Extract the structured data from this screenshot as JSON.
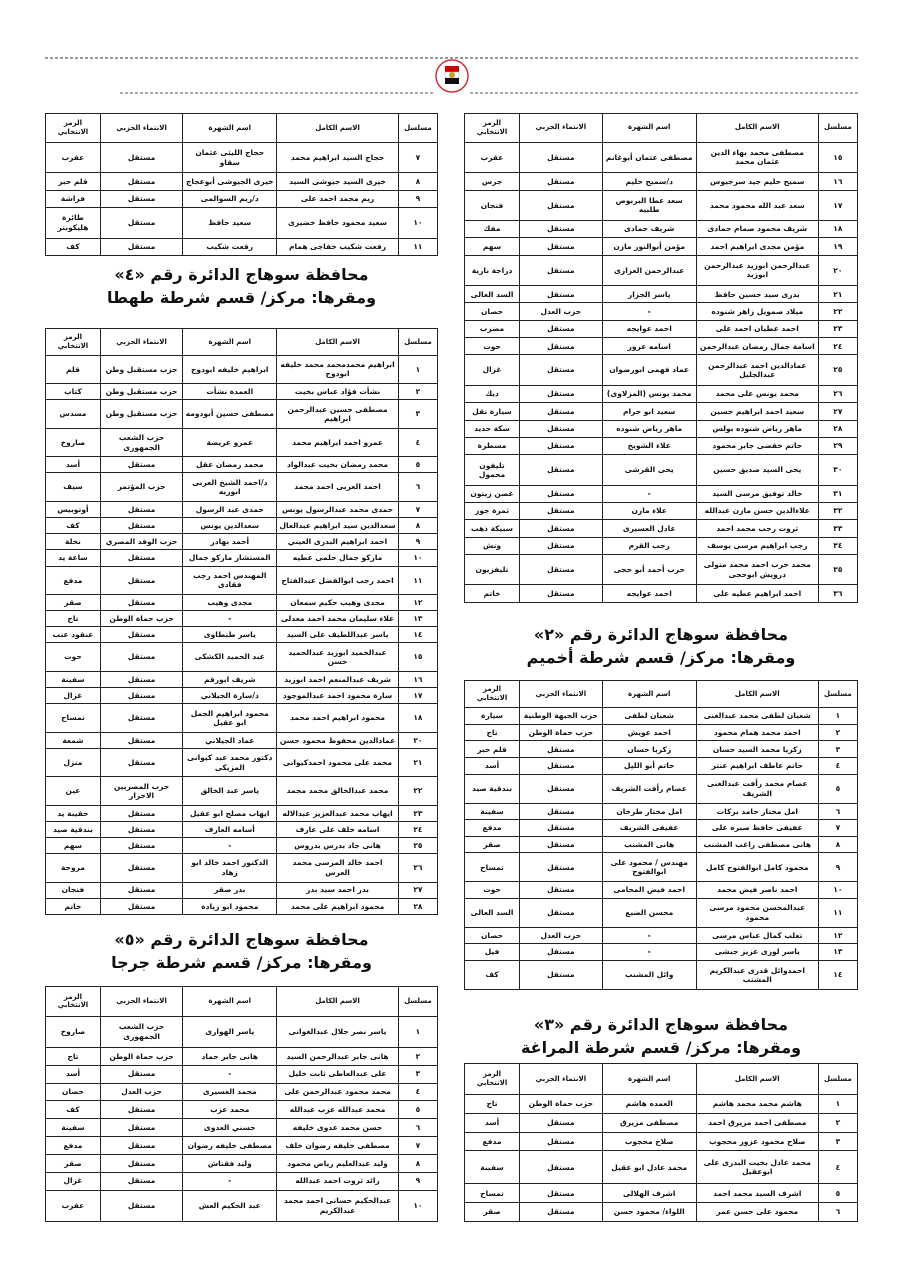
{
  "columns": [
    "مسلسل",
    "الاسم الكامل",
    "اسم الشهرة",
    "الانتماء الحزبي",
    "الرمز الانتخابي"
  ],
  "right_column": [
    {
      "rows": [
        [
          "١٥",
          "مصطفى محمد بهاء الدين عثمان محمد",
          "مصطفى عثمان أبوغانم",
          "مستقل",
          "عقرب"
        ],
        [
          "١٦",
          "سميح حليم جيد سرجيوس",
          "د/سميح حليم",
          "مستقل",
          "جرس"
        ],
        [
          "١٧",
          "سعد عبد الله محمود محمد",
          "سعد عطا البربوص طلبيه",
          "مستقل",
          "فنجان"
        ],
        [
          "١٨",
          "شريف محمود صمام حمادى",
          "شريف حمادى",
          "مستقل",
          "مفك"
        ],
        [
          "١٩",
          "مؤمن مجدى ابراهيم احمد",
          "مؤمن أبوالنور مازن",
          "مستقل",
          "سهم"
        ],
        [
          "٢٠",
          "عبدالرحمن ابوزيد عبدالرحمن ابوزيد",
          "عبدالرحمن العزازى",
          "مستقل",
          "دراجة نارية"
        ],
        [
          "٢١",
          "بدرى سيد حسين حافظ",
          "ياسر الجزار",
          "مستقل",
          "السد العالى"
        ],
        [
          "٢٢",
          "ميلاد صمويل زاهر شنوده",
          "-",
          "حزب العدل",
          "حصان"
        ],
        [
          "٢٣",
          "احمد عطيان احمد على",
          "احمد عوايجه",
          "مستقل",
          "مضرب"
        ],
        [
          "٢٤",
          "اسامة جمال رمضان عبدالرحمن",
          "اسامه عرور",
          "مستقل",
          "حوت"
        ],
        [
          "٢٥",
          "عمادالدين احمد عبدالرحمن عبدالجليل",
          "عماد فهمى ابورضوان",
          "مستقل",
          "غزال"
        ],
        [
          "٢٦",
          "محمد يونس على محمد",
          "محمد يونس (المزلاوى)",
          "مستقل",
          "ديك"
        ],
        [
          "٢٧",
          "سعيد احمد ابراهيم حسين",
          "سعيد ابو حرام",
          "مستقل",
          "سيارة نقل"
        ],
        [
          "٢٨",
          "ماهر رياض شنوده بولس",
          "ماهر رياض شنوده",
          "مستقل",
          "سكة حديد"
        ],
        [
          "٢٩",
          "حاتم خفضى جابر محمود",
          "علاء الشويخ",
          "مستقل",
          "مسطرة"
        ],
        [
          "٣٠",
          "يحى السيد صديق حسين",
          "يحى القرشى",
          "مستقل",
          "تليفون محمول"
        ],
        [
          "٣١",
          "خالد توفيق مرسى السيد",
          "-",
          "مستقل",
          "غصن زيتون"
        ],
        [
          "٣٢",
          "علاءالدين حسن مازن عبدالله",
          "علاء مازن",
          "مستقل",
          "ثمرة جوز"
        ],
        [
          "٣٣",
          "ثروت رجب محمد احمد",
          "عادل العسيرى",
          "مستقل",
          "سبيكة ذهب"
        ],
        [
          "٣٤",
          "رجب ابراهيم مرسى يوسف",
          "رجب القرم",
          "مستقل",
          "ونش"
        ],
        [
          "٣٥",
          "محمد حرب احمد محمد متولى درويش ابوحجى",
          "حرب أحمد أبو حجى",
          "مستقل",
          "تليفزيون"
        ],
        [
          "٣٦",
          "احمد ابراهيم عطيه على",
          "احمد عوايجه",
          "مستقل",
          "خاتم"
        ]
      ]
    },
    {
      "heading": [
        "محافظة سوهاج الدائرة رقم «٢»",
        "ومقرها: مركز/ قسم شرطة أخميم"
      ],
      "rows": [
        [
          "١",
          "شعبان لطفى محمد عبدالغنى",
          "شعبان لطفى",
          "حزب الجبهة الوطنية",
          "سيارة"
        ],
        [
          "٢",
          "احمد محمد همام محمود",
          "احمد عويش",
          "حزب حماة الوطن",
          "تاج"
        ],
        [
          "٣",
          "زكريا محمد السيد حسان",
          "زكريا حسان",
          "مستقل",
          "قلم حبر"
        ],
        [
          "٤",
          "حاتم عاطف ابراهيم عنتر",
          "حاتم أبو الليل",
          "مستقل",
          "أسد"
        ],
        [
          "٥",
          "عصام محمد رأفت عبدالغنى الشريف",
          "عصام رأفت الشريف",
          "مستقل",
          "بندقية صيد"
        ],
        [
          "٦",
          "امل مختار حامد بركات",
          "امل مختار طرخان",
          "مستقل",
          "سفينة"
        ],
        [
          "٧",
          "عفيفى حافظ صبره على",
          "عفيفى الشريف",
          "مستقل",
          "مدفع"
        ],
        [
          "٨",
          "هانى مصطفى راغب المشنب",
          "هانى المشنب",
          "مستقل",
          "صقر"
        ],
        [
          "٩",
          "محمود كامل ابوالفتوح كامل",
          "مهندس / محمود على ابوالفتوح",
          "مستقل",
          "تمساح"
        ],
        [
          "١٠",
          "احمد ناصر فيض محمد",
          "احمد فيض المحامى",
          "مستقل",
          "حوت"
        ],
        [
          "١١",
          "عبدالمحسن محمود مرسى محمود",
          "محسن الضبع",
          "مستقل",
          "السد العالى"
        ],
        [
          "١٢",
          "تعلب كمال عباس مرسى",
          "-",
          "حزب العدل",
          "حصان"
        ],
        [
          "١٣",
          "ياسر لوزى عزيز جبشى",
          "-",
          "مستقل",
          "فيل"
        ],
        [
          "١٤",
          "احمدوائل قدرى عبدالكريم المشنب",
          "وائل المشنب",
          "مستقل",
          "كف"
        ]
      ]
    },
    {
      "heading": [
        "محافظة سوهاج الدائرة رقم «٣»",
        "ومقرها: مركز/ قسم شرطة المراغة"
      ],
      "rows": [
        [
          "١",
          "هاشم محمد محمد هاشم",
          "العمده هاشم",
          "حزب حماة الوطن",
          "تاج"
        ],
        [
          "٢",
          "مصطفى احمد مزيرق احمد",
          "مصطفى مزيرق",
          "مستقل",
          "أسد"
        ],
        [
          "٣",
          "صلاح محمود عزوز محجوب",
          "صلاح محجوب",
          "مستقل",
          "مدفع"
        ],
        [
          "٤",
          "محمد عادل بخيت البدرى على ابوعقيل",
          "محمد عادل ابو عقيل",
          "مستقل",
          "سفينة"
        ],
        [
          "٥",
          "اشرف السيد محمد احمد",
          "اشرف الهلالى",
          "مستقل",
          "تمساح"
        ],
        [
          "٦",
          "محمود على حسن عمر",
          "اللواء/ محمود حسن",
          "مستقل",
          "صقر"
        ]
      ]
    }
  ],
  "left_column": [
    {
      "rows": [
        [
          "٧",
          "حجاج السيد ابراهيم محمد",
          "حجاج الليثى عثمان سقاو",
          "مستقل",
          "عقرب"
        ],
        [
          "٨",
          "خيرى السيد جيوشى السيد",
          "خيرى الجيوشى أبوعجاج",
          "مستقل",
          "قلم حبر"
        ],
        [
          "٩",
          "ريم محمد احمد على",
          "د/ريم السوالمى",
          "مستقل",
          "فراشة"
        ],
        [
          "١٠",
          "سعيد محمود حافظ خضيرى",
          "سعيد حافظ",
          "مستقل",
          "طائرة هليكوبتر"
        ],
        [
          "١١",
          "رفعت شكيب خفاجى همام",
          "رفعت شكيب",
          "مستقل",
          "كف"
        ]
      ]
    },
    {
      "heading": [
        "محافظة سوهاج الدائرة رقم «٤»",
        "ومقرها: مركز/ قسم شرطة طهطا"
      ],
      "rows": [
        [
          "١",
          "ابراهيم محمدمحمد محمد خليفه ابودوح",
          "ابراهيم خليفه ابودوح",
          "حزب مستقبل وطن",
          "قلم"
        ],
        [
          "٢",
          "نشأت فؤاد عباس بخيت",
          "العمدة نشأت",
          "حزب مستقبل وطن",
          "كتاب"
        ],
        [
          "٣",
          "مصطفى حسين عبدالرحمن ابراهيم",
          "مصطفى حسين أبودومه",
          "حزب مستقبل وطن",
          "مسدس"
        ],
        [
          "٤",
          "عمرو احمد ابراهيم محمد",
          "عمرو عريضة",
          "حزب الشعب الجمهورى",
          "صاروخ"
        ],
        [
          "٥",
          "محمد رمضان بخيت عبدالواد",
          "محمد رمضان عقل",
          "مستقل",
          "أسد"
        ],
        [
          "٦",
          "احمد العربى احمد محمد",
          "د/احمد الشيخ العربى ابوريه",
          "حزب المؤتمر",
          "سيف"
        ],
        [
          "٧",
          "حمدى محمد عبدالرسول يونس",
          "حمدى عبد الرسول",
          "مستقل",
          "أوتوبيس"
        ],
        [
          "٨",
          "سعدالدين سيد ابراهيم عبدالعال",
          "سعدالدين يونس",
          "مستقل",
          "كف"
        ],
        [
          "٩",
          "احمد ابراهيم البدرى العيني",
          "أحمد بهادر",
          "حزب الوفد المصري",
          "نخلة"
        ],
        [
          "١٠",
          "ماركو جمال حلمى عطيه",
          "المستشار ماركو جمال",
          "مستقل",
          "ساعة يد"
        ],
        [
          "١١",
          "احمد رجب ابوالفضل عبدالفتاح",
          "المهندس احمد رجب فقادى",
          "مستقل",
          "مدفع"
        ],
        [
          "١٢",
          "مجدى وهيب حكيم سمعان",
          "مجدى وهيب",
          "مستقل",
          "صقر"
        ],
        [
          "١٣",
          "علاء سليمان محمد احمد معدلى",
          "-",
          "حزب حماة الوطن",
          "تاج"
        ],
        [
          "١٤",
          "ياسر عبداللطيف على السيد",
          "ياسر طنطاوى",
          "مستقل",
          "عنقود عنب"
        ],
        [
          "١٥",
          "عبدالحميد ابوزيد عبدالحميد حسن",
          "عبد الحميد الكشكى",
          "مستقل",
          "حوت"
        ],
        [
          "١٦",
          "شريف عبدالمنعم احمد ابوزيد",
          "شريف ابورقم",
          "مستقل",
          "سفينة"
        ],
        [
          "١٧",
          "سارة محمود احمد عبدالموجود",
          "د/سارة الجيلاني",
          "مستقل",
          "غزال"
        ],
        [
          "١٨",
          "محمود ابراهيم احمد محمد",
          "محمود ابراهيم الجمل ابو عقيل",
          "مستقل",
          "تمساح"
        ],
        [
          "٢٠",
          "عمادالدين محفوظ محمود حسن",
          "عماد الجيلاني",
          "مستقل",
          "شمعة"
        ],
        [
          "٢١",
          "محمد على محمود احمدكيوانى",
          "دكتور محمد عبد كيوانى المزيكى",
          "مستقل",
          "منزل"
        ],
        [
          "٢٢",
          "محمد عبدالخالق محمد محمد",
          "ياسر عبد الخالق",
          "حزب المصريين الاحرار",
          "عين"
        ],
        [
          "٢٣",
          "ايهاب محمد عبدالعزيز عبدالاله",
          "ايهاب مصلح ابو عقيل",
          "مستقل",
          "حقيبة يد"
        ],
        [
          "٢٤",
          "اسامه خلف على عارف",
          "أسامه العارف",
          "مستقل",
          "بندقية صيد"
        ],
        [
          "٢٥",
          "هانى جاد بدرس بدروس",
          "-",
          "مستقل",
          "سهم"
        ],
        [
          "٢٦",
          "احمد خالد المرسى محمد العرس",
          "الدكتور احمد خالد ابو زهاد",
          "مستقل",
          "مروحة"
        ],
        [
          "٢٧",
          "بدر احمد سيد بدر",
          "بدر صقر",
          "مستقل",
          "فنجان"
        ],
        [
          "٢٨",
          "محمود ابراهيم على محمد",
          "محمود ابو زيادة",
          "مستقل",
          "خاتم"
        ]
      ]
    },
    {
      "heading": [
        "محافظة سوهاج الدائرة رقم «٥»",
        "ومقرها: مركز/ قسم شرطة جرجا"
      ],
      "rows": [
        [
          "١",
          "ياسر نصر جلال عبدالغوانى",
          "ياسر الهوارى",
          "حزب الشعب الجمهورى",
          "صاروخ"
        ],
        [
          "٢",
          "هانى جابر عبدالرحمن السيد",
          "هانى جابر حماد",
          "حزب حماة الوطن",
          "تاج"
        ],
        [
          "٣",
          "على عبدالعاطى ثابت خليل",
          "-",
          "مستقل",
          "أسد"
        ],
        [
          "٤",
          "محمد محمود عبدالرحمن على",
          "محمد العسيرى",
          "حزب العدل",
          "حصان"
        ],
        [
          "٥",
          "محمد عبدالله عزب عبدالله",
          "محمد عزب",
          "مستقل",
          "كف"
        ],
        [
          "٦",
          "حسن محمد عدوى خليفه",
          "حسني العدوى",
          "مستقل",
          "سفينة"
        ],
        [
          "٧",
          "مصطفى خليفه رضوان خلف",
          "مصطفى خليفه رضوان",
          "مستقل",
          "مدفع"
        ],
        [
          "٨",
          "وليد عبدالعليم رياض محمود",
          "وليد فقناش",
          "مستقل",
          "صقر"
        ],
        [
          "٩",
          "رائد ثروت احمد عبدالله",
          "-",
          "مستقل",
          "غزال"
        ],
        [
          "١٠",
          "عبدالحكيم حسانى احمد محمد عبدالكريم",
          "عبد الحكيم العش",
          "مستقل",
          "عقرب"
        ]
      ]
    }
  ]
}
